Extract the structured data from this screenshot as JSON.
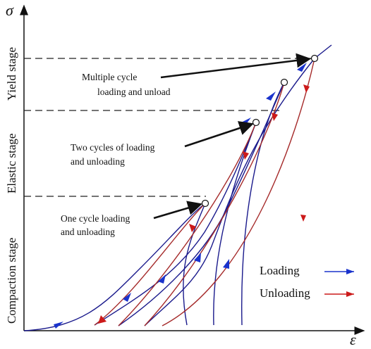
{
  "axes": {
    "y_symbol": "σ",
    "x_symbol": "ε"
  },
  "stages": {
    "yield": "Yield stage",
    "elastic": "Elastic stage",
    "compaction": "Compaction stage"
  },
  "annotations": {
    "multiple": [
      "Multiple cycle",
      "loading and unload"
    ],
    "two": [
      "Two cycles of loading",
      "and unloading"
    ],
    "one": [
      "One cycle loading",
      "and unloading"
    ]
  },
  "legend": {
    "loading": {
      "label": "Loading",
      "color": "#1a33cc"
    },
    "unloading": {
      "label": "Unloading",
      "color": "#cc1a1a"
    }
  },
  "colors": {
    "curve_loading": "#1a1a8c",
    "curve_unloading": "#a52a2a",
    "axis": "#111111"
  }
}
